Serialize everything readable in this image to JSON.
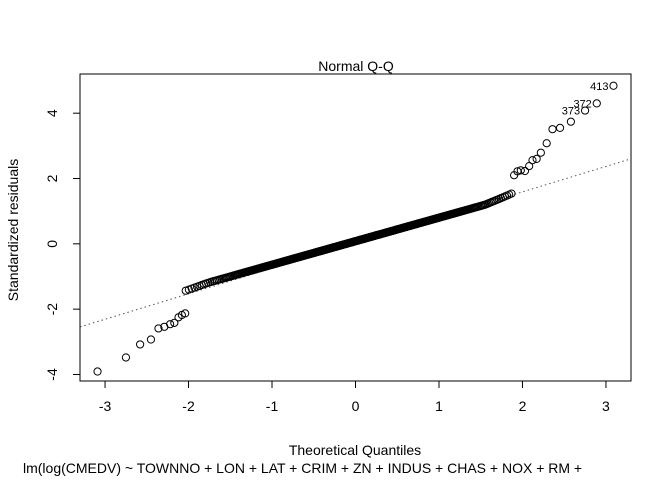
{
  "chart_data": {
    "type": "scatter",
    "title": "Normal Q-Q",
    "xlabel": "Theoretical Quantiles",
    "ylabel": "Standardized residuals",
    "subtitle": "lm(log(CMEDV) ~ TOWNNO + LON + LAT + CRIM + ZN + INDUS + CHAS + NOX + RM +",
    "xlim": [
      -3.3,
      3.3
    ],
    "ylim": [
      -4.2,
      5.2
    ],
    "xticks": [
      -3,
      -2,
      -1,
      0,
      1,
      2,
      3
    ],
    "yticks": [
      -4,
      -2,
      0,
      2,
      4
    ],
    "grid": false,
    "reference_line": {
      "slope": 0.78,
      "intercept": 0.03,
      "style": "dotted"
    },
    "n_points": 506,
    "body_model": {
      "slope": 0.72,
      "intercept": 0.08,
      "bend": 0.33,
      "bend_start": 1.55,
      "tail_start": 1.7,
      "tail_power": 2.2,
      "tail_slope": 0.48,
      "tail_intercept": 0.55
    },
    "tails": {
      "low": [
        {
          "x": -3.09,
          "y": -3.91
        },
        {
          "x": -2.75,
          "y": -3.48
        },
        {
          "x": -2.58,
          "y": -3.08
        },
        {
          "x": -2.45,
          "y": -2.93
        },
        {
          "x": -2.36,
          "y": -2.59
        },
        {
          "x": -2.29,
          "y": -2.54
        },
        {
          "x": -2.22,
          "y": -2.46
        },
        {
          "x": -2.17,
          "y": -2.42
        },
        {
          "x": -2.12,
          "y": -2.25
        },
        {
          "x": -2.08,
          "y": -2.18
        },
        {
          "x": -2.04,
          "y": -2.13
        }
      ],
      "high": [
        {
          "x": 1.9,
          "y": 2.1
        },
        {
          "x": 1.94,
          "y": 2.22
        },
        {
          "x": 1.98,
          "y": 2.25
        },
        {
          "x": 2.03,
          "y": 2.23
        },
        {
          "x": 2.08,
          "y": 2.38
        },
        {
          "x": 2.12,
          "y": 2.56
        },
        {
          "x": 2.17,
          "y": 2.6
        },
        {
          "x": 2.22,
          "y": 2.79
        },
        {
          "x": 2.29,
          "y": 3.08
        },
        {
          "x": 2.36,
          "y": 3.51
        },
        {
          "x": 2.45,
          "y": 3.55
        },
        {
          "x": 2.58,
          "y": 3.74
        },
        {
          "x": 2.75,
          "y": 4.08
        },
        {
          "x": 2.89,
          "y": 4.3
        },
        {
          "x": 3.09,
          "y": 4.84
        }
      ]
    },
    "labeled_points": [
      {
        "label": "413",
        "x": 3.09,
        "y": 4.84
      },
      {
        "label": "372",
        "x": 2.89,
        "y": 4.3
      },
      {
        "label": "373",
        "x": 2.75,
        "y": 4.08
      }
    ]
  }
}
